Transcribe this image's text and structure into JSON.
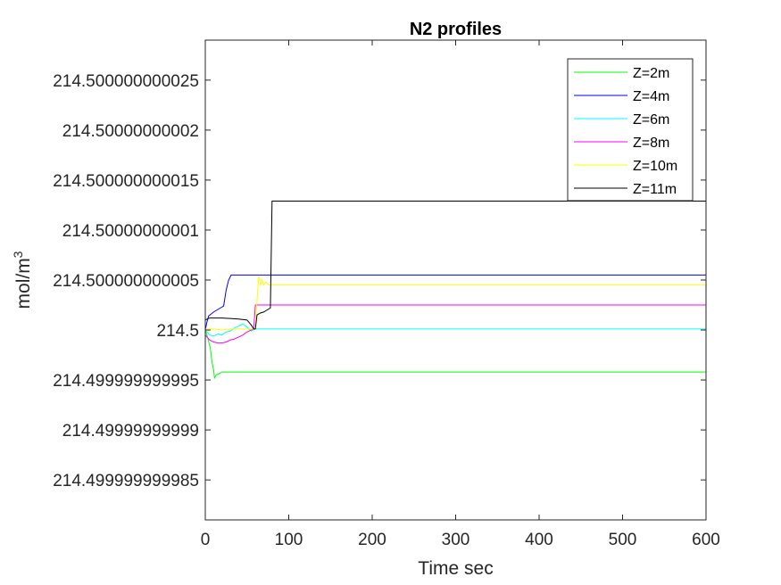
{
  "chart_data": {
    "type": "line",
    "title": "N2 profiles",
    "xlabel": "Time sec",
    "ylabel": "mol/m",
    "ylabel_superscript": "3",
    "xlim": [
      0,
      600
    ],
    "ylim_offset_from_214_5": [
      -1.9e-11,
      2.9e-11
    ],
    "x_ticks": [
      {
        "value": 0,
        "label": "0"
      },
      {
        "value": 100,
        "label": "100"
      },
      {
        "value": 200,
        "label": "200"
      },
      {
        "value": 300,
        "label": "300"
      },
      {
        "value": 400,
        "label": "400"
      },
      {
        "value": 500,
        "label": "500"
      },
      {
        "value": 600,
        "label": "600"
      }
    ],
    "y_ticks": [
      {
        "offset": -1.5e-11,
        "label": "214.499999999985"
      },
      {
        "offset": -1e-11,
        "label": "214.49999999999"
      },
      {
        "offset": -5e-12,
        "label": "214.499999999995"
      },
      {
        "offset": 0,
        "label": "214.5"
      },
      {
        "offset": 5e-12,
        "label": "214.500000000005"
      },
      {
        "offset": 1e-11,
        "label": "214.50000000001"
      },
      {
        "offset": 1.5e-11,
        "label": "214.500000000015"
      },
      {
        "offset": 2e-11,
        "label": "214.50000000002"
      },
      {
        "offset": 2.5e-11,
        "label": "214.500000000025"
      }
    ],
    "grid": false,
    "legend_position": "top-right",
    "series": [
      {
        "name": "Z=2m",
        "color": "#00ff00",
        "points": [
          [
            0,
            0.0
          ],
          [
            3,
            -8e-13
          ],
          [
            6,
            -1.8e-12
          ],
          [
            8,
            -3.2e-12
          ],
          [
            10,
            -4e-12
          ],
          [
            11,
            -4.8e-12
          ],
          [
            13,
            -4.5e-12
          ],
          [
            16,
            -4.4e-12
          ],
          [
            20,
            -4.2e-12
          ],
          [
            600,
            -4.2e-12
          ]
        ]
      },
      {
        "name": "Z=4m",
        "color": "#0000ff",
        "points": [
          [
            0,
            0.0
          ],
          [
            2,
            8e-13
          ],
          [
            4,
            1.4e-12
          ],
          [
            7,
            1.6e-12
          ],
          [
            10,
            1.8e-12
          ],
          [
            14,
            2e-12
          ],
          [
            18,
            2.2e-12
          ],
          [
            22,
            2.4e-12
          ],
          [
            25,
            4e-12
          ],
          [
            28,
            5e-12
          ],
          [
            31,
            5.5e-12
          ],
          [
            35,
            5.5e-12
          ],
          [
            600,
            5.5e-12
          ]
        ]
      },
      {
        "name": "Z=6m",
        "color": "#00ffff",
        "points": [
          [
            0,
            0.0
          ],
          [
            5,
            -5e-13
          ],
          [
            10,
            -6e-13
          ],
          [
            15,
            -4e-13
          ],
          [
            20,
            -5e-13
          ],
          [
            25,
            -2e-13
          ],
          [
            30,
            -1e-13
          ],
          [
            35,
            2e-13
          ],
          [
            40,
            4e-13
          ],
          [
            45,
            6e-13
          ],
          [
            50,
            3e-13
          ],
          [
            55,
            -1e-13
          ],
          [
            60,
            1e-13
          ],
          [
            70,
            1e-13
          ],
          [
            600,
            1e-13
          ]
        ]
      },
      {
        "name": "Z=8m",
        "color": "#ff00ff",
        "points": [
          [
            0,
            -5e-13
          ],
          [
            5,
            -1e-12
          ],
          [
            10,
            -1.2e-12
          ],
          [
            15,
            -1.3e-12
          ],
          [
            20,
            -1.3e-12
          ],
          [
            25,
            -1.2e-12
          ],
          [
            30,
            -1e-12
          ],
          [
            35,
            -9e-13
          ],
          [
            40,
            -7e-13
          ],
          [
            45,
            -5e-13
          ],
          [
            50,
            -2e-13
          ],
          [
            55,
            0.0
          ],
          [
            58,
            1e-13
          ],
          [
            60,
            2.5e-12
          ],
          [
            70,
            2.5e-12
          ],
          [
            80,
            2.5e-12
          ],
          [
            600,
            2.5e-12
          ]
        ]
      },
      {
        "name": "Z=10m",
        "color": "#ffff00",
        "points": [
          [
            0,
            1e-13
          ],
          [
            10,
            1e-13
          ],
          [
            20,
            0.0
          ],
          [
            30,
            1e-13
          ],
          [
            40,
            1e-13
          ],
          [
            50,
            1e-13
          ],
          [
            55,
            1e-13
          ],
          [
            60,
            1e-13
          ],
          [
            62,
            3e-12
          ],
          [
            64,
            5.4e-12
          ],
          [
            66,
            4.5e-12
          ],
          [
            68,
            5e-12
          ],
          [
            70,
            4.5e-12
          ],
          [
            73,
            4.8e-12
          ],
          [
            76,
            4.5e-12
          ],
          [
            80,
            4.5e-12
          ],
          [
            600,
            4.5e-12
          ]
        ]
      },
      {
        "name": "Z=11m",
        "color": "#000000",
        "points": [
          [
            0,
            1e-12
          ],
          [
            5,
            1.2e-12
          ],
          [
            20,
            1.2e-12
          ],
          [
            40,
            1.1e-12
          ],
          [
            50,
            1e-12
          ],
          [
            55,
            5e-13
          ],
          [
            58,
            1e-13
          ],
          [
            60,
            1e-13
          ],
          [
            62,
            1.5e-12
          ],
          [
            66,
            1.7e-12
          ],
          [
            70,
            1.8e-12
          ],
          [
            74,
            2e-12
          ],
          [
            78,
            2.2e-12
          ],
          [
            80,
            1.29e-11
          ],
          [
            600,
            1.29e-11
          ]
        ]
      }
    ]
  }
}
